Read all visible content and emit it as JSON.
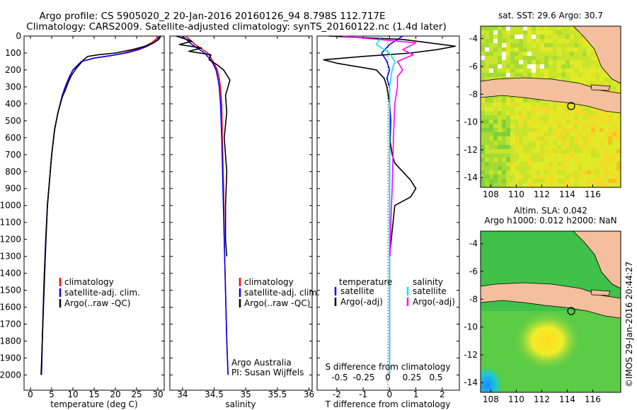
{
  "header": {
    "line1": "Argo profile: CS 5905020_2 20-Jan-2016 20160126_94 8.798S 112.717E",
    "line2": "Climatology: CARS2009. Satellite-adjusted climatology: synTS_20160122.nc (1.4d later)"
  },
  "colors": {
    "climatology": "#ff0000",
    "satellite": "#0000ff",
    "argo": "#000000",
    "sal_satellite": "#00e5e5",
    "sal_argo": "#ff00ff",
    "land": "#f4bf9c",
    "nodata": "#ffffff"
  },
  "chart_data": [
    {
      "type": "line",
      "panel": "temperature",
      "xlabel": "temperature (deg C)",
      "xlim": [
        -1.5,
        31.5
      ],
      "xticks": [
        0,
        5,
        10,
        15,
        20,
        25,
        30
      ],
      "ylim": [
        2090,
        0
      ],
      "yticks": [
        0,
        100,
        200,
        300,
        400,
        500,
        600,
        700,
        800,
        900,
        1000,
        1100,
        1200,
        1300,
        1400,
        1500,
        1600,
        1700,
        1800,
        1900,
        2000
      ],
      "y_reversed": true,
      "legend": {
        "placement": "lower-center",
        "entries": [
          "climatology",
          "satellite-adj. clim.",
          "Argo(..raw -QC)"
        ]
      },
      "series": [
        {
          "name": "climatology",
          "color": "#ff0000",
          "x": [
            30.0,
            29.5,
            28.5,
            27.0,
            25.0,
            22.0,
            19.0,
            15.0,
            12.0,
            10.0,
            9.0,
            8.2,
            7.5,
            6.5,
            5.7,
            5.0,
            4.5,
            4.0,
            3.6,
            3.2,
            2.9,
            2.6
          ],
          "y": [
            0,
            20,
            40,
            60,
            80,
            100,
            115,
            130,
            150,
            200,
            250,
            300,
            350,
            450,
            550,
            700,
            850,
            1000,
            1200,
            1450,
            1700,
            2000
          ]
        },
        {
          "name": "satellite-adj. clim.",
          "color": "#0000ff",
          "x": [
            30.5,
            30.0,
            29.0,
            27.5,
            25.5,
            22.5,
            19.0,
            15.0,
            12.0,
            10.0,
            9.0,
            8.2,
            7.5,
            6.5,
            5.7,
            5.0,
            4.5,
            4.0,
            3.6,
            3.2,
            2.9,
            2.6
          ],
          "y": [
            0,
            20,
            40,
            60,
            80,
            100,
            115,
            130,
            150,
            200,
            250,
            300,
            350,
            450,
            550,
            700,
            850,
            1000,
            1200,
            1450,
            1700,
            2000
          ]
        },
        {
          "name": "Argo(..raw -QC)",
          "color": "#000000",
          "x": [
            30.7,
            30.2,
            29.0,
            27.0,
            24.0,
            20.0,
            16.0,
            13.5,
            12.5,
            11.5,
            10.5,
            9.5,
            8.8,
            8.2,
            7.5,
            6.5,
            5.7,
            5.0,
            4.5,
            4.0,
            3.5,
            3.0,
            2.5
          ],
          "y": [
            0,
            20,
            40,
            60,
            80,
            100,
            110,
            120,
            140,
            170,
            200,
            240,
            280,
            320,
            360,
            450,
            550,
            700,
            850,
            1000,
            1300,
            1650,
            2000
          ]
        }
      ]
    },
    {
      "type": "line",
      "panel": "salinity",
      "xlabel": "salinity",
      "xlim": [
        33.8,
        36.05
      ],
      "xticks": [
        34,
        34.5,
        35,
        35.5,
        36
      ],
      "ylim": [
        2090,
        0
      ],
      "y_reversed": true,
      "legend": {
        "placement": "lower-right",
        "entries": [
          "climatology",
          "satellite-adj. clim.",
          "Argo(..raw -QC)"
        ]
      },
      "annotations": [
        "Argo Australia",
        "PI: Susan Wijffels"
      ],
      "series": [
        {
          "name": "climatology",
          "color": "#ff0000",
          "x": [
            34.05,
            34.2,
            34.4,
            34.45,
            34.5,
            34.55,
            34.58,
            34.6,
            34.62,
            34.63,
            34.65,
            34.66,
            34.68,
            34.7,
            34.72
          ],
          "y": [
            0,
            50,
            100,
            130,
            160,
            200,
            250,
            300,
            400,
            600,
            900,
            1200,
            1500,
            1800,
            2000
          ]
        },
        {
          "name": "satellite-adj. clim.",
          "color": "#0000ff",
          "x": [
            34.0,
            34.15,
            34.35,
            34.42,
            34.48,
            34.53,
            34.56,
            34.58,
            34.6,
            34.62,
            34.64,
            34.66,
            34.68,
            34.7,
            34.72
          ],
          "y": [
            0,
            50,
            100,
            130,
            160,
            200,
            250,
            300,
            400,
            600,
            900,
            1200,
            1500,
            1800,
            2000
          ]
        },
        {
          "name": "Argo(..raw -QC)",
          "color": "#000000",
          "x": [
            33.9,
            34.15,
            33.95,
            34.3,
            34.1,
            34.45,
            34.42,
            34.55,
            34.65,
            34.7,
            34.75,
            34.72,
            34.68,
            34.7,
            34.66,
            34.7,
            34.68,
            34.68,
            34.7
          ],
          "y": [
            0,
            30,
            50,
            70,
            90,
            110,
            140,
            170,
            200,
            230,
            260,
            300,
            350,
            450,
            600,
            800,
            1000,
            1200,
            1300
          ]
        }
      ]
    },
    {
      "type": "line",
      "panel": "difference",
      "xlabel": "T difference from climatology",
      "xlabel_top": "S difference from climatology",
      "xlim": [
        -2.75,
        2.65
      ],
      "xticks": [
        -2,
        -1,
        0,
        1,
        2
      ],
      "s_xticks": [
        "-0.5",
        "-0.25",
        "0",
        "0.25",
        "0.5"
      ],
      "ylim": [
        2090,
        0
      ],
      "y_reversed": true,
      "legend": {
        "placement": "lower-center",
        "entries": [
          "temperature",
          "satellite",
          "Argo(-adj)",
          "salinity",
          "satellite",
          "Argo(-adj)"
        ]
      },
      "series": [
        {
          "name": "satellite",
          "color": "#0000ff",
          "x": [
            0.5,
            0.0,
            -0.3,
            -0.1,
            0.0,
            -0.1,
            0.0,
            0.0,
            0.05,
            0.0,
            0.0,
            0.0,
            0.0
          ],
          "y": [
            0,
            50,
            100,
            150,
            200,
            250,
            300,
            400,
            500,
            700,
            1000,
            1400,
            2000
          ]
        },
        {
          "name": "Argo(-adj)",
          "color": "#000000",
          "x": [
            -2.3,
            0.5,
            1.5,
            2.5,
            1.8,
            0.8,
            -1.0,
            -2.5,
            -2.0,
            -0.5,
            -0.2,
            -0.1,
            0.0,
            0.0,
            0.1,
            0.2,
            0.5,
            0.8,
            1.0,
            0.8,
            0.2,
            0.0
          ],
          "y": [
            0,
            20,
            40,
            60,
            80,
            100,
            120,
            140,
            160,
            200,
            250,
            300,
            400,
            600,
            700,
            750,
            800,
            850,
            900,
            950,
            1000,
            1300
          ]
        },
        {
          "name": "satellite",
          "color": "#00e5e5",
          "x": [
            -0.3,
            -0.5,
            0.0,
            0.2,
            0.1,
            0.05,
            0.0,
            0.0,
            0.0,
            0.0,
            0.0,
            0.0,
            0.0
          ],
          "y": [
            0,
            50,
            100,
            150,
            200,
            250,
            300,
            400,
            500,
            700,
            1000,
            1400,
            2000
          ]
        },
        {
          "name": "Argo(-adj)",
          "color": "#ff00ff",
          "x": [
            -1.8,
            1.0,
            0.5,
            0.9,
            0.3,
            0.5,
            0.3,
            0.3,
            0.2,
            0.15,
            0.1,
            0.05,
            0.02
          ],
          "y": [
            0,
            40,
            80,
            110,
            150,
            200,
            240,
            300,
            400,
            600,
            900,
            1100,
            1300
          ]
        }
      ]
    },
    {
      "type": "heatmap",
      "panel": "sst_map",
      "title": "sat. SST: 29.6 Argo: 30.7",
      "xlim": [
        107.2,
        118.2
      ],
      "ylim": [
        -14.7,
        -3.1
      ],
      "xticks": [
        108,
        110,
        112,
        114,
        116
      ],
      "yticks": [
        -4,
        -6,
        -8,
        -10,
        -12,
        -14
      ],
      "marker": {
        "lon": 112.717,
        "lat": -8.798
      }
    },
    {
      "type": "heatmap",
      "panel": "sla_map",
      "title": "Altim. SLA: 0.042",
      "subtitle": "Argo h1000: 0.012 h2000: NaN",
      "xlim": [
        107.2,
        118.2
      ],
      "ylim": [
        -14.7,
        -3.1
      ],
      "xticks": [
        108,
        110,
        112,
        114,
        116
      ],
      "yticks": [
        -4,
        -6,
        -8,
        -10,
        -12,
        -14
      ],
      "marker": {
        "lon": 112.717,
        "lat": -8.798
      }
    }
  ],
  "footer": {
    "stamp": "©IMOS 29-Jan-2016 20:44:27"
  }
}
